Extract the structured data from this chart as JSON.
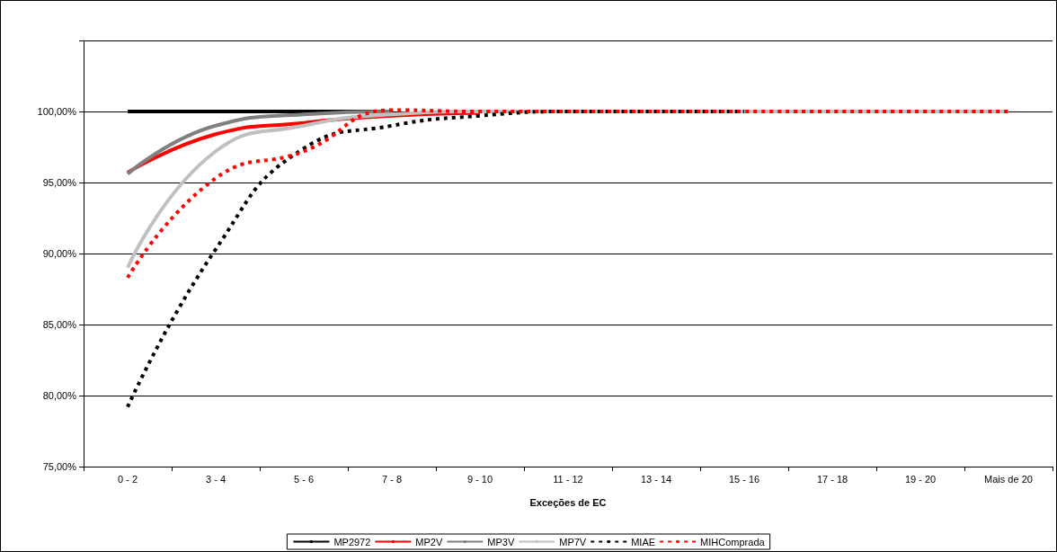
{
  "chart_data": {
    "type": "line",
    "xlabel": "Exceções de EC",
    "categories": [
      "0 - 2",
      "3 - 4",
      "5 - 6",
      "7 - 8",
      "9 - 10",
      "11 - 12",
      "13 - 14",
      "15 - 16",
      "17 - 18",
      "19 - 20",
      "Mais de 20"
    ],
    "series": [
      {
        "name": "MP2972",
        "color": "#000000",
        "line_style": "solid",
        "values": [
          100,
          100,
          100,
          100,
          null,
          null,
          null,
          null,
          null,
          null,
          null
        ]
      },
      {
        "name": "MP2V",
        "color": "#ff0000",
        "line_style": "solid",
        "values": [
          95.7,
          98.4,
          99.2,
          99.7,
          99.9,
          null,
          null,
          null,
          null,
          null,
          null
        ]
      },
      {
        "name": "MP3V",
        "color": "#808080",
        "line_style": "solid",
        "values": [
          95.6,
          99.0,
          99.8,
          100,
          null,
          null,
          null,
          null,
          null,
          null,
          null
        ]
      },
      {
        "name": "MP7V",
        "color": "#c0c0c0",
        "line_style": "solid",
        "values": [
          89.0,
          97.2,
          99.0,
          99.8,
          100,
          100,
          100,
          100,
          100,
          100,
          100
        ]
      },
      {
        "name": "MIAE",
        "color": "#000000",
        "line_style": "dashed",
        "values": [
          79.2,
          90.3,
          97.4,
          99.0,
          99.7,
          100,
          100,
          100,
          null,
          null,
          null
        ]
      },
      {
        "name": "MIHComprada",
        "color": "#ff0000",
        "line_style": "dashed",
        "values": [
          88.3,
          95.3,
          97.2,
          100.1,
          100,
          100,
          100,
          100,
          100,
          100,
          100
        ]
      }
    ],
    "ylim": [
      75,
      105
    ],
    "yticks": [
      {
        "value": 75,
        "label": "75,00%"
      },
      {
        "value": 80,
        "label": "80,00%"
      },
      {
        "value": 85,
        "label": "85,00%"
      },
      {
        "value": 90,
        "label": "90,00%"
      },
      {
        "value": 95,
        "label": "95,00%"
      },
      {
        "value": 100,
        "label": "100,00%"
      },
      {
        "value": 105,
        "label": null
      }
    ],
    "grid": "y",
    "legend": "bottom",
    "marker": "none"
  }
}
